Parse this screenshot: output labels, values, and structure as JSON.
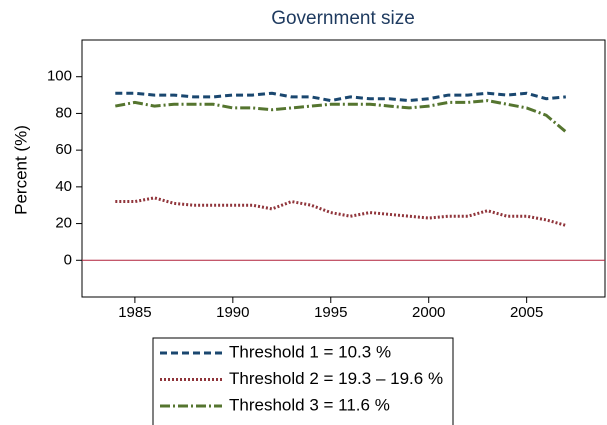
{
  "chart_data": {
    "type": "line",
    "title": "Government size",
    "ylabel": "Percent (%)",
    "x": [
      1984,
      1985,
      1986,
      1987,
      1988,
      1989,
      1990,
      1991,
      1992,
      1993,
      1994,
      1995,
      1996,
      1997,
      1998,
      1999,
      2000,
      2001,
      2002,
      2003,
      2004,
      2005,
      2006,
      2007
    ],
    "series": [
      {
        "name": "Threshold 1 = 10.3 %",
        "color": "#1a476f",
        "dash": "7,4",
        "values": [
          91,
          91,
          90,
          90,
          89,
          89,
          90,
          90,
          91,
          89,
          89,
          87,
          89,
          88,
          88,
          87,
          88,
          90,
          90,
          91,
          90,
          91,
          88,
          89
        ]
      },
      {
        "name": "Threshold 2 = 19.3 – 19.6 %",
        "color": "#90353b",
        "dash": "2,2",
        "values": [
          32,
          32,
          34,
          31,
          30,
          30,
          30,
          30,
          28,
          32,
          30,
          26,
          24,
          26,
          25,
          24,
          23,
          24,
          24,
          27,
          24,
          24,
          22,
          19
        ]
      },
      {
        "name": "Threshold 3 = 11.6 %",
        "color": "#55752f",
        "dash": "10,3,2,3",
        "values": [
          84,
          86,
          84,
          85,
          85,
          85,
          83,
          83,
          82,
          83,
          84,
          85,
          85,
          85,
          84,
          83,
          84,
          86,
          86,
          87,
          85,
          83,
          79,
          70
        ]
      }
    ],
    "xlim": [
      1982.3,
      2009
    ],
    "xticks": [
      1985,
      1990,
      1995,
      2000,
      2005
    ],
    "ylim": [
      -20,
      120
    ],
    "yticks": [
      0,
      20,
      40,
      60,
      80,
      100
    ],
    "hline": 0,
    "hline_color": "#b0203a"
  }
}
